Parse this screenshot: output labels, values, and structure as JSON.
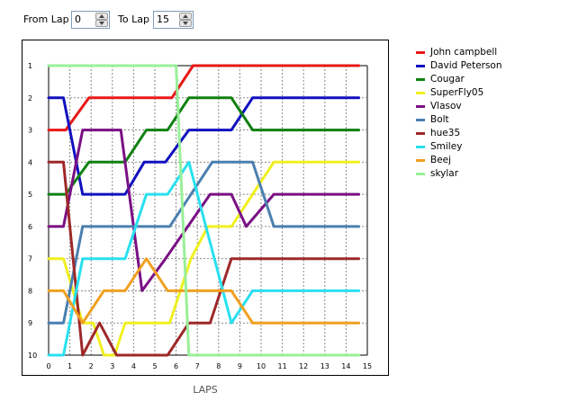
{
  "controls": {
    "from_label": "From Lap",
    "from_value": "0",
    "to_label": "To Lap",
    "to_value": "15"
  },
  "chart_data": {
    "type": "line",
    "title": "",
    "xlabel": "LAPS",
    "ylabel": "",
    "x": [
      0,
      1,
      2,
      3,
      4,
      5,
      6,
      7,
      8,
      9,
      10,
      11,
      12,
      13,
      14,
      15
    ],
    "x_ticks": [
      "0",
      "1",
      "2",
      "3",
      "4",
      "5",
      "6",
      "7",
      "8",
      "9",
      "10",
      "11",
      "12",
      "13",
      "14",
      "15"
    ],
    "y_ticks": [
      "1",
      "2",
      "3",
      "4",
      "5",
      "6",
      "7",
      "8",
      "9",
      "10"
    ],
    "xlim": [
      0,
      15
    ],
    "ylim": [
      1,
      10
    ],
    "y_inverted": true,
    "grid": true,
    "legend_position": "right",
    "series": [
      {
        "name": "John campbell",
        "color": "#e81818",
        "points": [
          [
            0,
            3
          ],
          [
            0.8,
            3
          ],
          [
            1.9,
            2
          ],
          [
            5.8,
            2
          ],
          [
            6.8,
            1
          ],
          [
            14.6,
            1
          ]
        ]
      },
      {
        "name": "David Peterson",
        "color": "#1010c0",
        "points": [
          [
            0,
            2
          ],
          [
            0.7,
            2
          ],
          [
            1.6,
            5
          ],
          [
            3.6,
            5
          ],
          [
            4.5,
            4
          ],
          [
            5.5,
            4
          ],
          [
            6.6,
            3
          ],
          [
            8.6,
            3
          ],
          [
            9.6,
            2
          ],
          [
            14.6,
            2
          ]
        ]
      },
      {
        "name": "Cougar",
        "color": "#108010",
        "points": [
          [
            0,
            5
          ],
          [
            0.8,
            5
          ],
          [
            1.9,
            4
          ],
          [
            3.6,
            4
          ],
          [
            4.6,
            3
          ],
          [
            5.6,
            3
          ],
          [
            6.6,
            2
          ],
          [
            8.6,
            2
          ],
          [
            9.6,
            3
          ],
          [
            14.6,
            3
          ]
        ]
      },
      {
        "name": "SuperFly05",
        "color": "#f0f020",
        "points": [
          [
            0,
            7
          ],
          [
            0.7,
            7
          ],
          [
            1.6,
            9
          ],
          [
            2.1,
            9
          ],
          [
            2.6,
            10
          ],
          [
            3.1,
            10
          ],
          [
            3.6,
            9
          ],
          [
            5.7,
            9
          ],
          [
            6.7,
            7
          ],
          [
            7.5,
            6
          ],
          [
            8.6,
            6
          ],
          [
            10.6,
            4
          ],
          [
            14.6,
            4
          ]
        ]
      },
      {
        "name": "Vlasov",
        "color": "#7a0f84",
        "points": [
          [
            0,
            6
          ],
          [
            0.7,
            6
          ],
          [
            1.6,
            3
          ],
          [
            3.4,
            3
          ],
          [
            4.4,
            8
          ],
          [
            5.5,
            7
          ],
          [
            7.6,
            5
          ],
          [
            8.6,
            5
          ],
          [
            9.3,
            6
          ],
          [
            10.6,
            5
          ],
          [
            14.6,
            5
          ]
        ]
      },
      {
        "name": "Bolt",
        "color": "#4a7fb0",
        "points": [
          [
            0,
            9
          ],
          [
            0.7,
            9
          ],
          [
            1.6,
            6
          ],
          [
            5.7,
            6
          ],
          [
            7.7,
            4
          ],
          [
            9.6,
            4
          ],
          [
            10.6,
            6
          ],
          [
            14.6,
            6
          ]
        ]
      },
      {
        "name": "hue35",
        "color": "#9e2828",
        "points": [
          [
            0,
            4
          ],
          [
            0.7,
            4
          ],
          [
            1.6,
            10
          ],
          [
            2.4,
            9
          ],
          [
            3.2,
            10
          ],
          [
            5.6,
            10
          ],
          [
            6.6,
            9
          ],
          [
            7.6,
            9
          ],
          [
            8.6,
            7
          ],
          [
            14.6,
            7
          ]
        ]
      },
      {
        "name": "Smiley",
        "color": "#28e0f0",
        "points": [
          [
            0,
            10
          ],
          [
            0.7,
            10
          ],
          [
            1.6,
            7
          ],
          [
            3.6,
            7
          ],
          [
            4.6,
            5
          ],
          [
            5.6,
            5
          ],
          [
            6.6,
            4
          ],
          [
            8.6,
            9
          ],
          [
            9.6,
            8
          ],
          [
            14.6,
            8
          ]
        ]
      },
      {
        "name": "Beej",
        "color": "#f0a020",
        "points": [
          [
            0,
            8
          ],
          [
            0.7,
            8
          ],
          [
            1.6,
            9
          ],
          [
            2.6,
            8
          ],
          [
            3.6,
            8
          ],
          [
            4.6,
            7
          ],
          [
            5.6,
            8
          ],
          [
            8.6,
            8
          ],
          [
            9.6,
            9
          ],
          [
            14.6,
            9
          ]
        ]
      },
      {
        "name": "skylar",
        "color": "#98f098",
        "points": [
          [
            0,
            1
          ],
          [
            6.0,
            1
          ],
          [
            6.6,
            10
          ],
          [
            14.6,
            10
          ]
        ]
      }
    ]
  }
}
